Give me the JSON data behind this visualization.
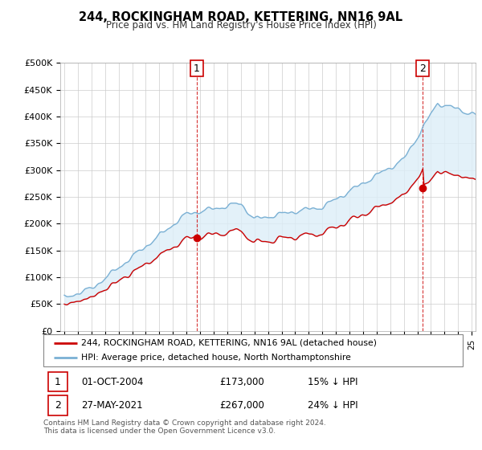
{
  "title": "244, ROCKINGHAM ROAD, KETTERING, NN16 9AL",
  "subtitle": "Price paid vs. HM Land Registry's House Price Index (HPI)",
  "ylabel_ticks": [
    "£0",
    "£50K",
    "£100K",
    "£150K",
    "£200K",
    "£250K",
    "£300K",
    "£350K",
    "£400K",
    "£450K",
    "£500K"
  ],
  "ytick_vals": [
    0,
    50000,
    100000,
    150000,
    200000,
    250000,
    300000,
    350000,
    400000,
    450000,
    500000
  ],
  "sale1_t": 2004.75,
  "sale1_price": 173000,
  "sale2_t": 2021.38,
  "sale2_price": 267000,
  "legend_label_red": "244, ROCKINGHAM ROAD, KETTERING, NN16 9AL (detached house)",
  "legend_label_blue": "HPI: Average price, detached house, North Northamptonshire",
  "footer": "Contains HM Land Registry data © Crown copyright and database right 2024.\nThis data is licensed under the Open Government Licence v3.0.",
  "red_color": "#cc0000",
  "blue_color": "#7ab0d4",
  "blue_fill": "#ddeeff",
  "table_row1": [
    "1",
    "01-OCT-2004",
    "£173,000",
    "15% ↓ HPI"
  ],
  "table_row2": [
    "2",
    "27-MAY-2021",
    "£267,000",
    "24% ↓ HPI"
  ]
}
